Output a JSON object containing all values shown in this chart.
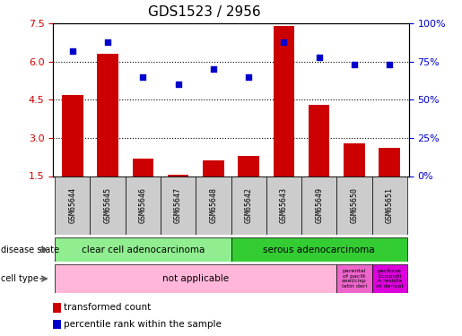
{
  "title": "GDS1523 / 2956",
  "samples": [
    "GSM65644",
    "GSM65645",
    "GSM65646",
    "GSM65647",
    "GSM65648",
    "GSM65642",
    "GSM65643",
    "GSM65649",
    "GSM65650",
    "GSM65651"
  ],
  "transformed_counts": [
    4.7,
    6.3,
    2.2,
    1.55,
    2.1,
    2.3,
    7.4,
    4.3,
    2.8,
    2.6
  ],
  "percentile_ranks": [
    82,
    88,
    65,
    60,
    70,
    65,
    88,
    78,
    73,
    73
  ],
  "ylim_left": [
    1.5,
    7.5
  ],
  "ylim_right": [
    0,
    100
  ],
  "yticks_left": [
    1.5,
    3.0,
    4.5,
    6.0,
    7.5
  ],
  "yticks_right": [
    0,
    25,
    50,
    75,
    100
  ],
  "bar_color": "#cc0000",
  "dot_color": "#0000cc",
  "disease_state_groups": [
    {
      "label": "clear cell adenocarcinoma",
      "start": 0,
      "end": 4,
      "color": "#90ee90"
    },
    {
      "label": "serous adenocarcinoma",
      "start": 5,
      "end": 9,
      "color": "#33cc33"
    }
  ],
  "cell_type_groups": [
    {
      "label": "not applicable",
      "start": 0,
      "end": 7,
      "color": "#ffb6d9"
    },
    {
      "label": "parental\nof paclit\naxel/cisp\nlatin deri",
      "start": 8,
      "end": 8,
      "color": "#ee66cc"
    },
    {
      "label": "pacltaxe\nl/cisplati\nn resista\nnt derivat",
      "start": 9,
      "end": 9,
      "color": "#dd00dd"
    }
  ],
  "left_label_color": "#cc0000",
  "right_label_color": "#0000cc"
}
